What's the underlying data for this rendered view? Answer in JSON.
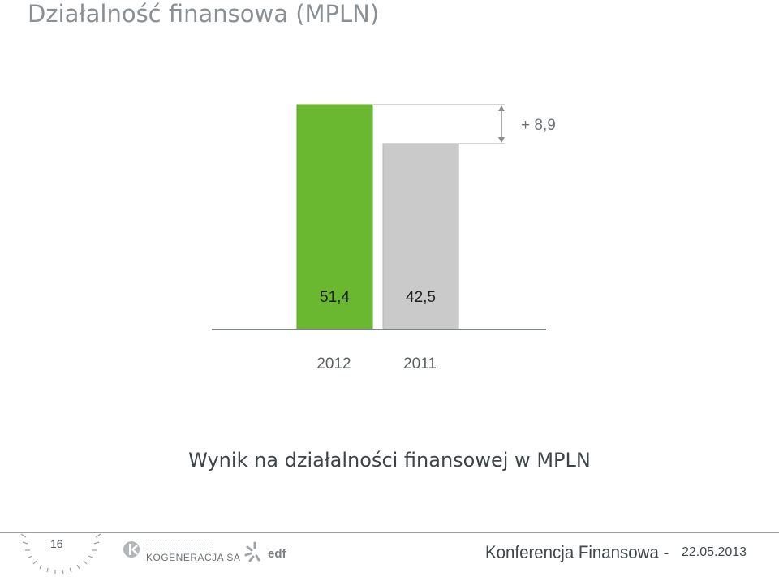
{
  "title": "Działalność finansowa (MPLN)",
  "caption": "Wynik na działalności finansowej w MPLN",
  "chart_data": {
    "type": "bar",
    "categories": [
      "2012",
      "2011"
    ],
    "values": [
      51.4,
      42.5
    ],
    "value_labels": [
      "51,4",
      "42,5"
    ],
    "difference_label": "+ 8,9",
    "colors": [
      "#6ab82f",
      "#cacaca"
    ],
    "ylim": [
      0,
      51.4
    ]
  },
  "footer": {
    "page_number": "16",
    "logo_kogeneracja": "KOGENERACJA SA",
    "logo_edf": "edf",
    "conference": "Konferencja Finansowa -",
    "date": "22.05.2013"
  }
}
